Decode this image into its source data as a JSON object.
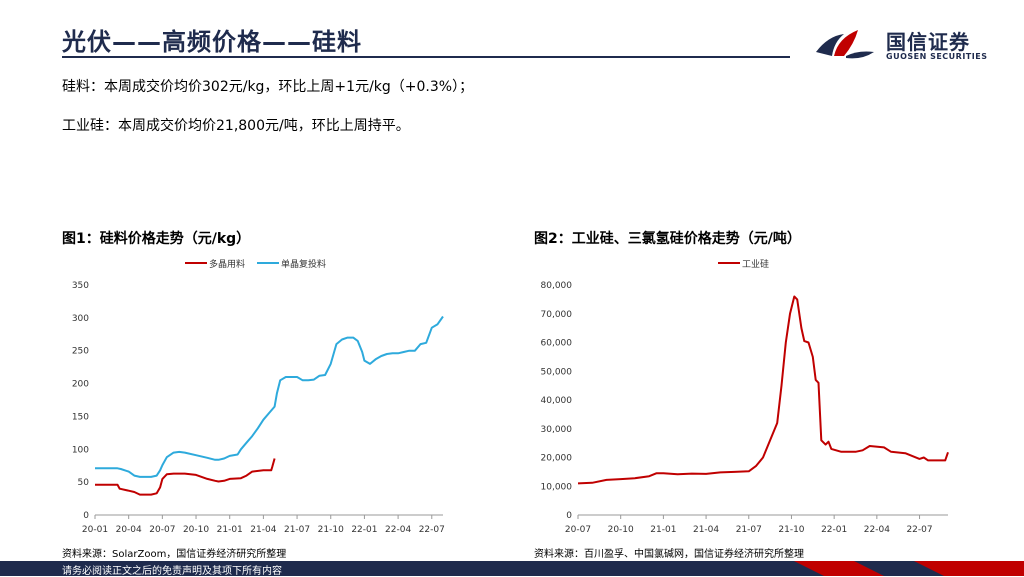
{
  "header": {
    "title": "光伏——高频价格——硅料",
    "logo_name": "国信证券",
    "logo_sub": "GUOSEN SECURITIES"
  },
  "summary": {
    "line1": "硅料：本周成交价均价302元/kg，环比上周+1元/kg（+0.3%）；",
    "line2": "工业硅：本周成交价均价21,800元/吨，环比上周持平。"
  },
  "figures": {
    "fig1_title": "图1：硅料价格走势（元/kg）",
    "fig2_title": "图2：工业硅、三氯氢硅价格走势（元/吨）",
    "fig1_source": "资料来源：SolarZoom，国信证券经济研究所整理",
    "fig2_source": "资料来源：百川盈孚、中国氯碱网，国信证券经济研究所整理"
  },
  "footer": {
    "disclaimer": "请务必阅读正文之后的免责声明及其项下所有内容"
  },
  "colors": {
    "navy": "#1f2b4d",
    "red": "#c00000",
    "blue": "#2eaadc"
  },
  "chart_data": [
    {
      "id": "chart1",
      "type": "line",
      "title": "图1：硅料价格走势（元/kg）",
      "x_range": [
        0,
        31
      ],
      "x_ticks": [
        {
          "x": 0,
          "label": "20-01"
        },
        {
          "x": 3,
          "label": "20-04"
        },
        {
          "x": 6,
          "label": "20-07"
        },
        {
          "x": 9,
          "label": "20-10"
        },
        {
          "x": 12,
          "label": "21-01"
        },
        {
          "x": 15,
          "label": "21-04"
        },
        {
          "x": 18,
          "label": "21-07"
        },
        {
          "x": 21,
          "label": "21-10"
        },
        {
          "x": 24,
          "label": "22-01"
        },
        {
          "x": 27,
          "label": "22-04"
        },
        {
          "x": 30,
          "label": "22-07"
        }
      ],
      "ylim": [
        0,
        350
      ],
      "y_ticks": [
        0,
        50,
        100,
        150,
        200,
        250,
        300,
        350
      ],
      "y_tick_labels": [
        "0",
        "50",
        "100",
        "150",
        "200",
        "250",
        "300",
        "350"
      ],
      "series": [
        {
          "name": "多晶用料",
          "color": "#c00000",
          "points": [
            [
              0,
              46
            ],
            [
              1,
              46
            ],
            [
              2,
              46
            ],
            [
              2.2,
              40
            ],
            [
              3,
              37
            ],
            [
              3.5,
              35
            ],
            [
              4,
              31
            ],
            [
              5,
              31
            ],
            [
              5.5,
              33
            ],
            [
              5.8,
              42
            ],
            [
              6,
              55
            ],
            [
              6.4,
              62
            ],
            [
              7,
              63
            ],
            [
              8,
              63
            ],
            [
              9,
              61
            ],
            [
              10,
              55
            ],
            [
              10.7,
              52
            ],
            [
              11,
              51
            ],
            [
              11.5,
              52
            ],
            [
              12,
              55
            ],
            [
              13,
              56
            ],
            [
              13.5,
              60
            ],
            [
              14,
              66
            ],
            [
              15,
              68
            ],
            [
              15.7,
              68
            ],
            [
              15.8,
              74
            ],
            [
              16,
              86
            ]
          ]
        },
        {
          "name": "单晶复投料",
          "color": "#2eaadc",
          "points": [
            [
              0,
              71
            ],
            [
              1,
              71
            ],
            [
              2,
              71
            ],
            [
              2.3,
              70
            ],
            [
              3,
              66
            ],
            [
              3.5,
              60
            ],
            [
              4,
              58
            ],
            [
              5,
              58
            ],
            [
              5.5,
              60
            ],
            [
              5.8,
              68
            ],
            [
              6,
              76
            ],
            [
              6.4,
              88
            ],
            [
              7,
              95
            ],
            [
              7.5,
              96
            ],
            [
              8,
              95
            ],
            [
              9,
              91
            ],
            [
              10,
              87
            ],
            [
              10.7,
              84
            ],
            [
              11,
              84
            ],
            [
              11.5,
              86
            ],
            [
              12,
              90
            ],
            [
              12.7,
              92
            ],
            [
              13,
              100
            ],
            [
              13.5,
              110
            ],
            [
              14,
              120
            ],
            [
              14.5,
              132
            ],
            [
              15,
              145
            ],
            [
              15.5,
              155
            ],
            [
              16,
              165
            ],
            [
              16.2,
              185
            ],
            [
              16.5,
              205
            ],
            [
              17,
              210
            ],
            [
              18,
              210
            ],
            [
              18.5,
              205
            ],
            [
              19,
              205
            ],
            [
              19.5,
              206
            ],
            [
              20,
              212
            ],
            [
              20.5,
              213
            ],
            [
              21,
              230
            ],
            [
              21.5,
              260
            ],
            [
              22,
              267
            ],
            [
              22.5,
              270
            ],
            [
              23,
              270
            ],
            [
              23.4,
              265
            ],
            [
              23.8,
              248
            ],
            [
              24,
              235
            ],
            [
              24.5,
              230
            ],
            [
              25,
              237
            ],
            [
              25.5,
              242
            ],
            [
              26,
              245
            ],
            [
              26.5,
              246
            ],
            [
              27,
              246
            ],
            [
              27.5,
              248
            ],
            [
              28,
              250
            ],
            [
              28.5,
              250
            ],
            [
              29,
              260
            ],
            [
              29.5,
              262
            ],
            [
              30,
              285
            ],
            [
              30.5,
              290
            ],
            [
              31,
              302
            ]
          ]
        }
      ]
    },
    {
      "id": "chart2",
      "type": "line",
      "title": "图2：工业硅、三氯氢硅价格走势（元/吨）",
      "x_range": [
        0,
        26
      ],
      "x_ticks": [
        {
          "x": 0,
          "label": "20-07"
        },
        {
          "x": 3,
          "label": "20-10"
        },
        {
          "x": 6,
          "label": "21-01"
        },
        {
          "x": 9,
          "label": "21-04"
        },
        {
          "x": 12,
          "label": "21-07"
        },
        {
          "x": 15,
          "label": "21-10"
        },
        {
          "x": 18,
          "label": "22-01"
        },
        {
          "x": 21,
          "label": "22-04"
        },
        {
          "x": 24,
          "label": "22-07"
        }
      ],
      "ylim": [
        0,
        80000
      ],
      "y_ticks": [
        0,
        10000,
        20000,
        30000,
        40000,
        50000,
        60000,
        70000,
        80000
      ],
      "y_tick_labels": [
        "0",
        "10,000",
        "20,000",
        "30,000",
        "40,000",
        "50,000",
        "60,000",
        "70,000",
        "80,000"
      ],
      "series": [
        {
          "name": "工业硅",
          "color": "#c00000",
          "points": [
            [
              0,
              11000
            ],
            [
              1,
              11200
            ],
            [
              2,
              12200
            ],
            [
              3,
              12500
            ],
            [
              4,
              12800
            ],
            [
              5,
              13500
            ],
            [
              5.5,
              14500
            ],
            [
              6,
              14500
            ],
            [
              7,
              14200
            ],
            [
              8,
              14400
            ],
            [
              9,
              14300
            ],
            [
              10,
              14800
            ],
            [
              11,
              15000
            ],
            [
              12,
              15200
            ],
            [
              12.5,
              17000
            ],
            [
              13,
              20000
            ],
            [
              13.5,
              26000
            ],
            [
              14,
              32000
            ],
            [
              14.3,
              45000
            ],
            [
              14.6,
              60000
            ],
            [
              14.9,
              70000
            ],
            [
              15.2,
              76000
            ],
            [
              15.4,
              75000
            ],
            [
              15.7,
              65000
            ],
            [
              15.9,
              60500
            ],
            [
              16.2,
              60000
            ],
            [
              16.5,
              55000
            ],
            [
              16.7,
              47000
            ],
            [
              16.9,
              46000
            ],
            [
              17.1,
              26000
            ],
            [
              17.4,
              24500
            ],
            [
              17.6,
              25500
            ],
            [
              17.8,
              23000
            ],
            [
              18.5,
              22000
            ],
            [
              19.5,
              22000
            ],
            [
              20,
              22500
            ],
            [
              20.5,
              24000
            ],
            [
              21.5,
              23500
            ],
            [
              22,
              22000
            ],
            [
              23,
              21500
            ],
            [
              23.5,
              20500
            ],
            [
              24,
              19500
            ],
            [
              24.3,
              20000
            ],
            [
              24.6,
              19000
            ],
            [
              25,
              19000
            ],
            [
              25.8,
              19000
            ],
            [
              26,
              21800
            ]
          ]
        }
      ]
    }
  ]
}
